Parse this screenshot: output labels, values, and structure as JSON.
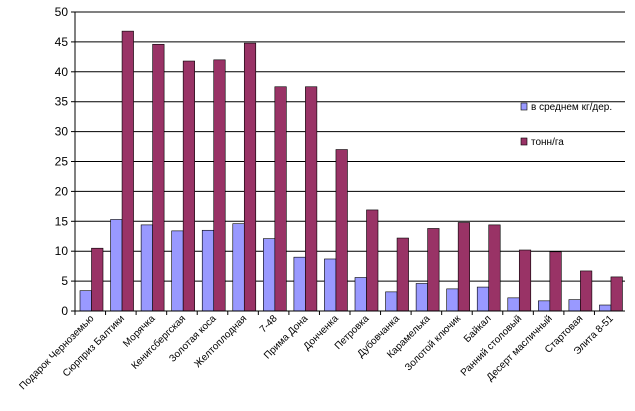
{
  "chart_data": {
    "type": "bar",
    "categories": [
      "Подарок Черноземью",
      "Сюрприз Балтики",
      "Морячка",
      "Кенигсбергская",
      "Золотая коса",
      "Желтоплодная",
      "7-48",
      "Прима Дона",
      "Донченка",
      "Петровка",
      "Дубовчанка",
      "Карамелька",
      "Золотой ключик",
      "Байкал",
      "Ранний столовый",
      "Десерт масличный",
      "Стартовая",
      "Элита 8-51"
    ],
    "series": [
      {
        "name": "в среднем кг/дер.",
        "color": "#9999ff",
        "values": [
          3.4,
          15.3,
          14.4,
          13.4,
          13.5,
          14.6,
          12.1,
          9.0,
          8.7,
          5.6,
          3.2,
          4.6,
          3.7,
          4.0,
          2.2,
          1.7,
          1.9,
          1.0
        ]
      },
      {
        "name": "тонн/га",
        "color": "#993366",
        "values": [
          10.5,
          46.8,
          44.6,
          41.8,
          42.0,
          44.8,
          37.5,
          37.5,
          27.0,
          16.9,
          12.2,
          13.8,
          14.8,
          14.4,
          10.2,
          9.9,
          6.7,
          5.7
        ]
      }
    ],
    "yticks": [
      "0",
      "5",
      "10",
      "15",
      "20",
      "25",
      "30",
      "35",
      "40",
      "45",
      "50"
    ],
    "ylim": [
      0,
      50
    ],
    "grid": true,
    "legend": "right"
  }
}
